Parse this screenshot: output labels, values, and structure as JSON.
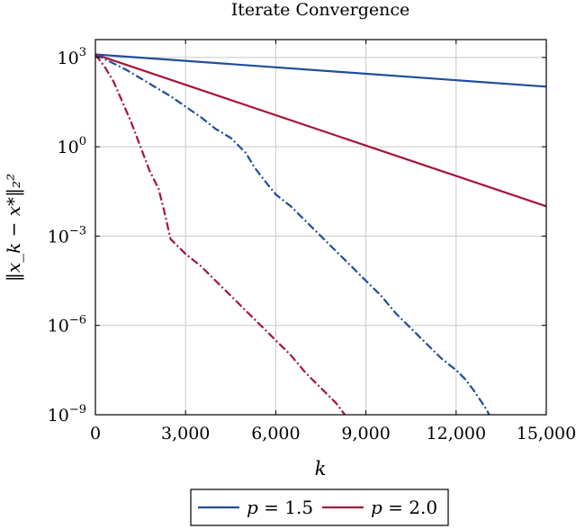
{
  "chart_data": {
    "type": "line",
    "title": "Iterate Convergence",
    "xlabel": "k",
    "ylabel": "‖x_k − x*‖₂²",
    "xlim": [
      0,
      15000
    ],
    "ylim_log10": [
      -9,
      3.6
    ],
    "yscale": "log",
    "grid": true,
    "legend_position": "bottom-outside",
    "x_ticks": [
      {
        "value": 0,
        "label": "0"
      },
      {
        "value": 3000,
        "label": "3,000"
      },
      {
        "value": 6000,
        "label": "6,000"
      },
      {
        "value": 9000,
        "label": "9,000"
      },
      {
        "value": 12000,
        "label": "12,000"
      },
      {
        "value": 15000,
        "label": "15,000"
      }
    ],
    "y_ticks": [
      {
        "exp": 3,
        "base": "10",
        "sup": "3"
      },
      {
        "exp": 0,
        "base": "10",
        "sup": "0"
      },
      {
        "exp": -3,
        "base": "10",
        "sup": "−3"
      },
      {
        "exp": -6,
        "base": "10",
        "sup": "−6"
      },
      {
        "exp": -9,
        "base": "10",
        "sup": "−9"
      }
    ],
    "series": [
      {
        "name": "p = 1.5",
        "legend_var": "p",
        "legend_value": "= 1.5",
        "style": "solid",
        "color": "#1f4e9c",
        "x": [
          0,
          15000
        ],
        "log10_y": [
          3.1,
          2.02
        ]
      },
      {
        "name": "p = 2.0",
        "legend_var": "p",
        "legend_value": "= 2.0",
        "style": "solid",
        "color": "#a6153a",
        "x": [
          0,
          15000
        ],
        "log10_y": [
          3.1,
          -2.0
        ]
      },
      {
        "style": "dashdot",
        "color": "#1f4e9c",
        "x": [
          0,
          500,
          1000,
          1500,
          2000,
          2500,
          3000,
          3500,
          4000,
          4500,
          5000,
          5300,
          5600,
          6000,
          6500,
          7000,
          7500,
          8000,
          8500,
          9000,
          9500,
          10000,
          10500,
          11000,
          11500,
          12000,
          12300,
          12600,
          12800,
          13000,
          13100
        ],
        "log10_y": [
          3.1,
          2.85,
          2.6,
          2.3,
          2.0,
          1.7,
          1.35,
          1.0,
          0.6,
          0.3,
          -0.2,
          -0.7,
          -1.1,
          -1.6,
          -2.0,
          -2.5,
          -3.0,
          -3.5,
          -4.0,
          -4.5,
          -5.0,
          -5.6,
          -6.1,
          -6.6,
          -7.1,
          -7.5,
          -7.8,
          -8.2,
          -8.5,
          -8.8,
          -9.0
        ]
      },
      {
        "style": "dashdot",
        "color": "#a6153a",
        "x": [
          0,
          300,
          600,
          900,
          1200,
          1500,
          1800,
          2100,
          2300,
          2500,
          2700,
          3000,
          3500,
          4000,
          4500,
          5000,
          5500,
          6000,
          6500,
          7000,
          7500,
          8000,
          8300
        ],
        "log10_y": [
          3.1,
          2.7,
          2.2,
          1.5,
          0.8,
          0.0,
          -0.8,
          -1.4,
          -2.2,
          -3.1,
          -3.3,
          -3.6,
          -4.0,
          -4.5,
          -5.0,
          -5.5,
          -6.0,
          -6.5,
          -7.0,
          -7.6,
          -8.1,
          -8.6,
          -9.0
        ]
      }
    ]
  }
}
